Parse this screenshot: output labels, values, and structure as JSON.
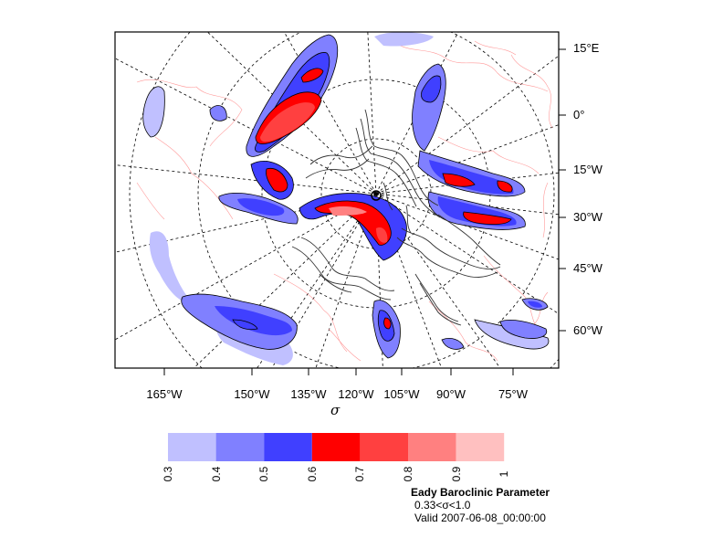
{
  "map": {
    "title": "Eady Baroclinic Parameter",
    "level_text": "0.33<σ<1.0",
    "valid_time": "Valid 2007-06-08_00:00:00",
    "x_axis_symbol": "σ",
    "right_labels": [
      "15°E",
      "0°",
      "15°W",
      "30°W",
      "45°W",
      "60°W"
    ],
    "bottom_labels": [
      "165°W",
      "150°W",
      "135°W",
      "120°W",
      "105°W",
      "90°W",
      "75°W"
    ]
  },
  "colorbar": {
    "levels": [
      "0.3",
      "0.4",
      "0.5",
      "0.6",
      "0.7",
      "0.8",
      "0.9",
      "1"
    ],
    "colors": [
      "#c0c0ff",
      "#8080ff",
      "#4040ff",
      "#ff0000",
      "#ff4040",
      "#ff8080",
      "#ffc0c0"
    ]
  },
  "style": {
    "coastline_color": "#ff9999",
    "terrain_color": "#333333",
    "frame_color": "#000000"
  }
}
